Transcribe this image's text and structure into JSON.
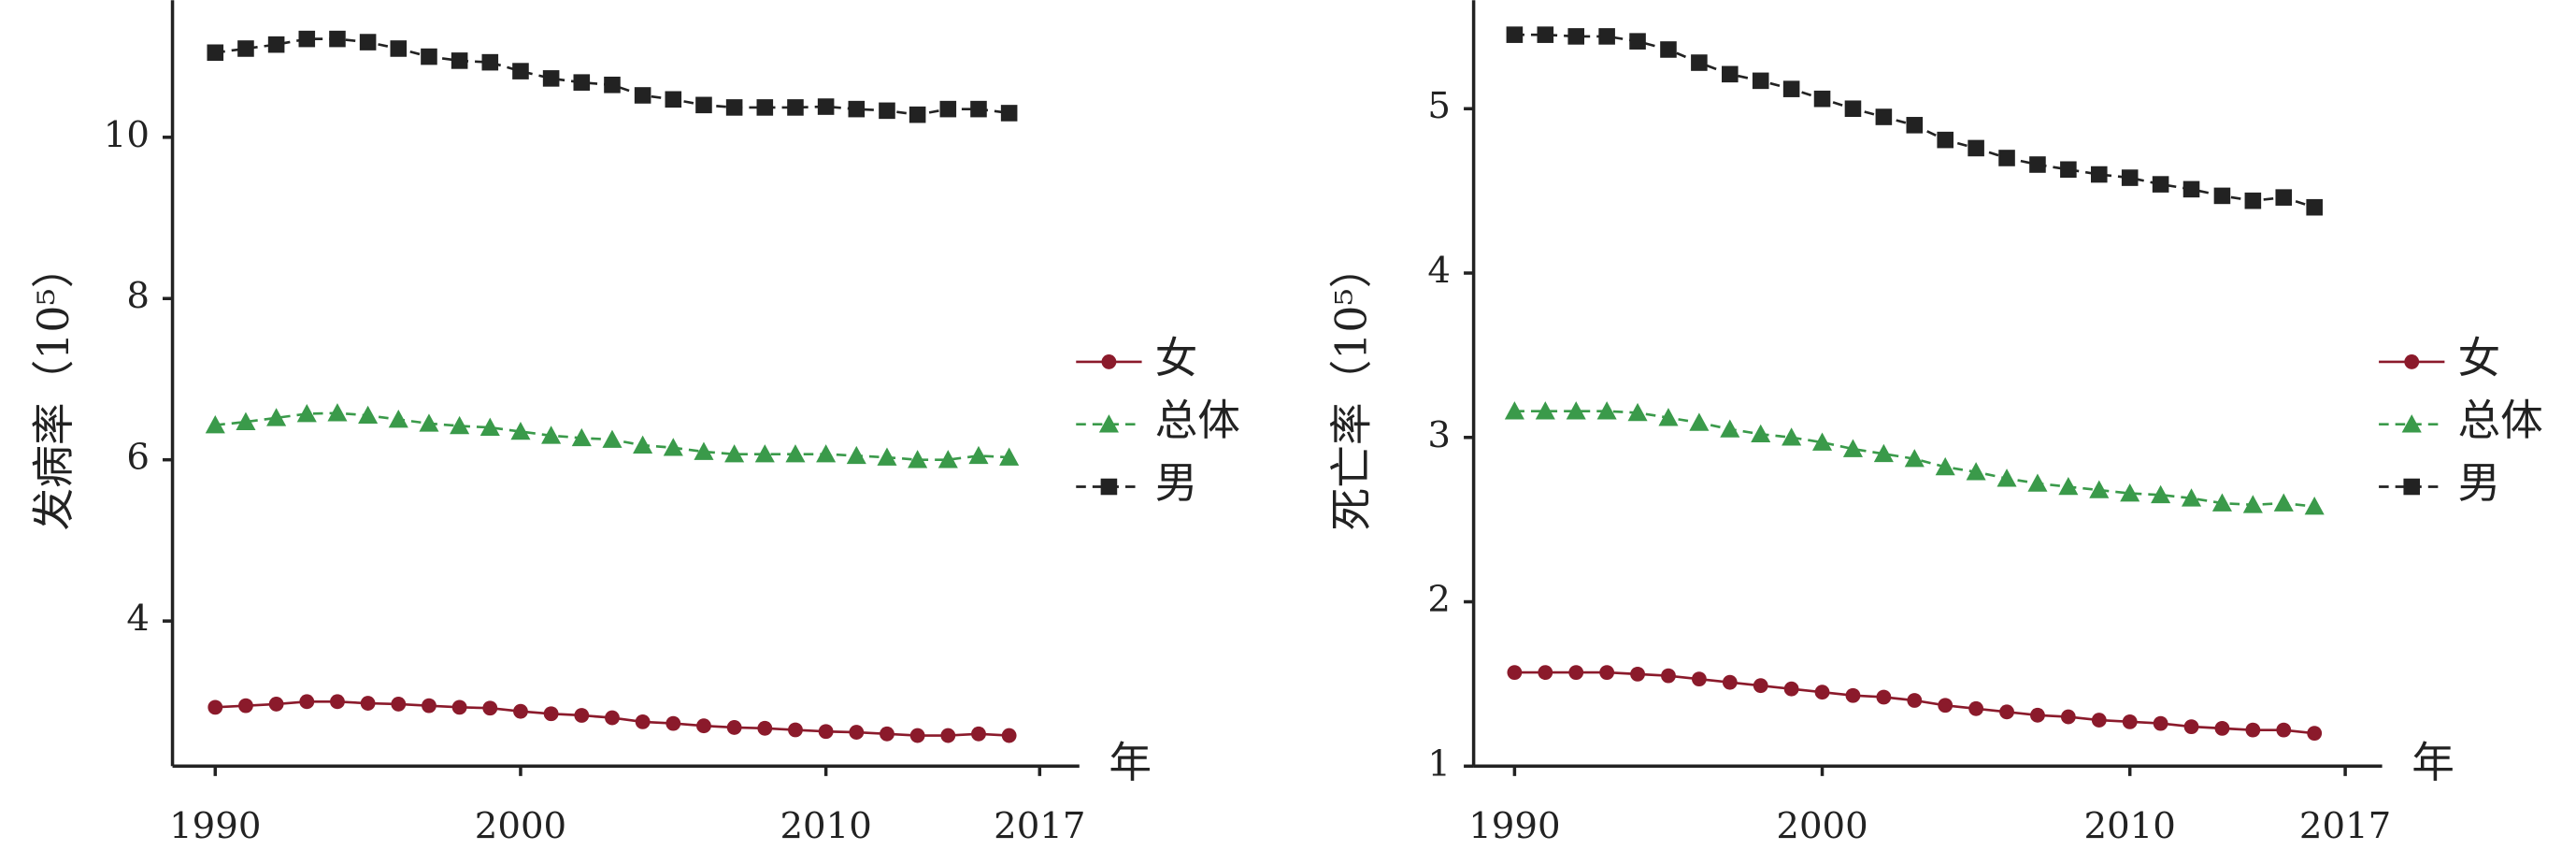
{
  "chart_data": [
    {
      "type": "line",
      "ylabel": "发病率（10⁵）",
      "xlabel": "年",
      "x": [
        1990,
        1991,
        1992,
        1993,
        1994,
        1995,
        1996,
        1997,
        1998,
        1999,
        2000,
        2001,
        2002,
        2003,
        2004,
        2005,
        2006,
        2007,
        2008,
        2009,
        2010,
        2011,
        2012,
        2013,
        2014,
        2015,
        2016
      ],
      "xlim": [
        1988.6,
        2018.3
      ],
      "xticks": [
        1990,
        2000,
        2010,
        2017
      ],
      "ylim": [
        2.2,
        11.7
      ],
      "yticks": [
        4,
        6,
        8,
        10
      ],
      "series": [
        {
          "name": "女",
          "color": "#8b1a2b",
          "marker": "circle",
          "dashed": false,
          "values": [
            2.93,
            2.95,
            2.97,
            3.0,
            3.0,
            2.98,
            2.97,
            2.95,
            2.93,
            2.92,
            2.88,
            2.85,
            2.83,
            2.8,
            2.75,
            2.73,
            2.7,
            2.68,
            2.67,
            2.65,
            2.63,
            2.62,
            2.6,
            2.58,
            2.58,
            2.6,
            2.58
          ]
        },
        {
          "name": "总体",
          "color": "#3a9a4a",
          "marker": "triangle",
          "dashed": true,
          "values": [
            6.43,
            6.47,
            6.52,
            6.57,
            6.58,
            6.55,
            6.5,
            6.45,
            6.42,
            6.4,
            6.35,
            6.3,
            6.27,
            6.25,
            6.18,
            6.15,
            6.1,
            6.07,
            6.07,
            6.07,
            6.07,
            6.05,
            6.03,
            6.0,
            6.0,
            6.05,
            6.03
          ]
        },
        {
          "name": "男",
          "color": "#222222",
          "marker": "square",
          "dashed": true,
          "values": [
            11.05,
            11.1,
            11.15,
            11.22,
            11.22,
            11.18,
            11.1,
            11.0,
            10.95,
            10.93,
            10.82,
            10.73,
            10.68,
            10.65,
            10.52,
            10.47,
            10.4,
            10.37,
            10.37,
            10.37,
            10.38,
            10.35,
            10.33,
            10.28,
            10.35,
            10.35,
            10.3
          ]
        }
      ]
    },
    {
      "type": "line",
      "ylabel": "死亡率（10⁵）",
      "xlabel": "年",
      "x": [
        1990,
        1991,
        1992,
        1993,
        1994,
        1995,
        1996,
        1997,
        1998,
        1999,
        2000,
        2001,
        2002,
        2003,
        2004,
        2005,
        2006,
        2007,
        2008,
        2009,
        2010,
        2011,
        2012,
        2013,
        2014,
        2015,
        2016
      ],
      "xlim": [
        1988.67,
        2018.2
      ],
      "xticks": [
        1990,
        2000,
        2010,
        2017
      ],
      "ylim": [
        1,
        5.66
      ],
      "yticks": [
        1,
        2,
        3,
        4,
        5
      ],
      "series": [
        {
          "name": "女",
          "color": "#8b1a2b",
          "marker": "circle",
          "dashed": false,
          "values": [
            1.57,
            1.57,
            1.57,
            1.57,
            1.56,
            1.55,
            1.53,
            1.51,
            1.49,
            1.47,
            1.45,
            1.43,
            1.42,
            1.4,
            1.37,
            1.35,
            1.33,
            1.31,
            1.3,
            1.28,
            1.27,
            1.26,
            1.24,
            1.23,
            1.22,
            1.22,
            1.2
          ]
        },
        {
          "name": "总体",
          "color": "#3a9a4a",
          "marker": "triangle",
          "dashed": true,
          "values": [
            3.16,
            3.16,
            3.16,
            3.16,
            3.15,
            3.12,
            3.09,
            3.05,
            3.02,
            3.0,
            2.97,
            2.93,
            2.9,
            2.87,
            2.82,
            2.79,
            2.75,
            2.72,
            2.7,
            2.68,
            2.66,
            2.65,
            2.63,
            2.6,
            2.59,
            2.6,
            2.58
          ]
        },
        {
          "name": "男",
          "color": "#222222",
          "marker": "square",
          "dashed": true,
          "values": [
            5.45,
            5.45,
            5.44,
            5.44,
            5.41,
            5.36,
            5.28,
            5.21,
            5.17,
            5.12,
            5.06,
            5.0,
            4.95,
            4.9,
            4.81,
            4.76,
            4.7,
            4.66,
            4.63,
            4.6,
            4.58,
            4.54,
            4.51,
            4.47,
            4.44,
            4.46,
            4.4
          ]
        }
      ]
    }
  ]
}
